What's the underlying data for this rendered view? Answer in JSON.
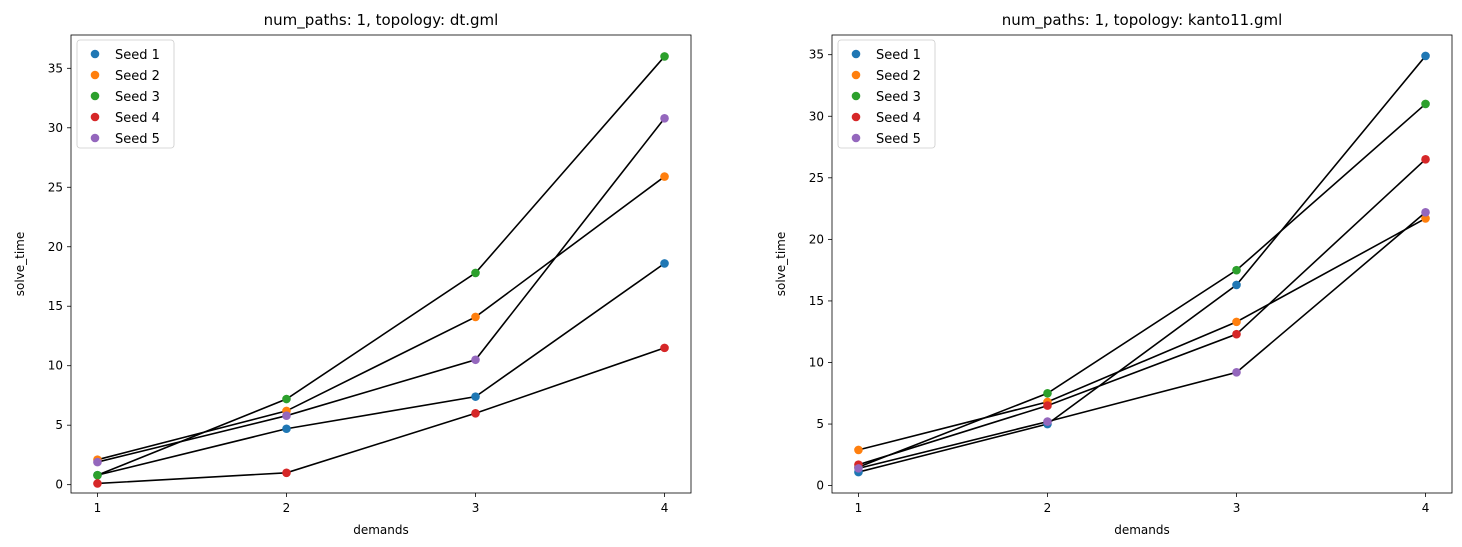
{
  "chart_data": [
    {
      "type": "scatter",
      "title": "num_paths: 1, topology: dt.gml",
      "xlabel": "demands",
      "ylabel": "solve_time",
      "xlim": [
        0.86,
        4.14
      ],
      "ylim": [
        -0.7,
        37.8
      ],
      "xticks": [
        1,
        2,
        3,
        4
      ],
      "yticks": [
        0,
        5,
        10,
        15,
        20,
        25,
        30,
        35
      ],
      "legend_position": "top-left",
      "x": [
        1,
        2,
        3,
        4
      ],
      "series": [
        {
          "name": "Seed 1",
          "color": "#1f77b4",
          "values": [
            0.8,
            4.7,
            7.4,
            18.6
          ]
        },
        {
          "name": "Seed 2",
          "color": "#ff7f0e",
          "values": [
            2.1,
            6.2,
            14.1,
            25.9
          ]
        },
        {
          "name": "Seed 3",
          "color": "#2ca02c",
          "values": [
            0.8,
            7.2,
            17.8,
            36.0
          ]
        },
        {
          "name": "Seed 4",
          "color": "#d62728",
          "values": [
            0.1,
            1.0,
            6.0,
            11.5
          ]
        },
        {
          "name": "Seed 5",
          "color": "#9467bd",
          "values": [
            1.9,
            5.8,
            10.5,
            30.8
          ]
        }
      ]
    },
    {
      "type": "scatter",
      "title": "num_paths: 1, topology: kanto11.gml",
      "xlabel": "demands",
      "ylabel": "solve_time",
      "xlim": [
        0.86,
        4.14
      ],
      "ylim": [
        -0.6,
        36.6
      ],
      "xticks": [
        1,
        2,
        3,
        4
      ],
      "yticks": [
        0,
        5,
        10,
        15,
        20,
        25,
        30,
        35
      ],
      "legend_position": "top-left",
      "x": [
        1,
        2,
        3,
        4
      ],
      "series": [
        {
          "name": "Seed 1",
          "color": "#1f77b4",
          "values": [
            1.1,
            5.0,
            16.3,
            34.9
          ]
        },
        {
          "name": "Seed 2",
          "color": "#ff7f0e",
          "values": [
            2.9,
            6.8,
            13.3,
            21.7
          ]
        },
        {
          "name": "Seed 3",
          "color": "#2ca02c",
          "values": [
            1.5,
            7.5,
            17.5,
            31.0
          ]
        },
        {
          "name": "Seed 4",
          "color": "#d62728",
          "values": [
            1.7,
            6.5,
            12.3,
            26.5
          ]
        },
        {
          "name": "Seed 5",
          "color": "#9467bd",
          "values": [
            1.4,
            5.2,
            9.2,
            22.2
          ]
        }
      ]
    }
  ],
  "line_color": "#000000"
}
